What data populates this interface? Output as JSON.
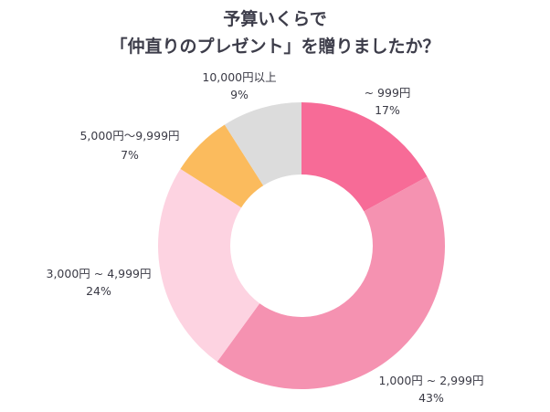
{
  "chart_data": {
    "type": "pie",
    "variant": "donut",
    "title": [
      "予算いくらで",
      "「仲直りのプレゼント」を贈りましたか？"
    ],
    "start": "top",
    "direction": "clockwise",
    "slices": [
      {
        "label": "~ 999円",
        "value": 17,
        "value_label": "17%",
        "color": "#f76b97"
      },
      {
        "label": "1,000円 ~ 2,999円",
        "value": 43,
        "value_label": "43%",
        "color": "#f592b1"
      },
      {
        "label": "3,000円 ~ 4,999円",
        "value": 24,
        "value_label": "24%",
        "color": "#fdd3e1"
      },
      {
        "label": "5,000円〜9,999円",
        "value": 7,
        "value_label": "7%",
        "color": "#fbbb5d"
      },
      {
        "label": "10,000円以上",
        "value": 9,
        "value_label": "9%",
        "color": "#dcdcdc"
      }
    ]
  }
}
